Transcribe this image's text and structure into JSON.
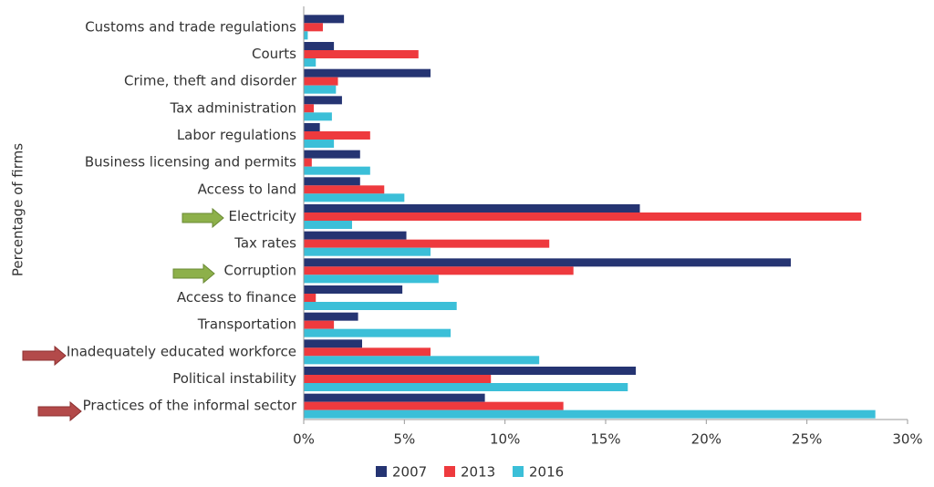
{
  "chart_data": {
    "type": "bar",
    "orientation": "horizontal",
    "y_axis_label": "Percentage of firms",
    "categories": [
      "Customs and trade regulations",
      "Courts",
      "Crime, theft and disorder",
      "Tax administration",
      "Labor regulations",
      "Business licensing and permits",
      "Access to land",
      "Electricity",
      "Tax rates",
      "Corruption",
      "Access to finance",
      "Transportation",
      "Inadequately educated workforce",
      "Political instability",
      "Practices of the informal sector"
    ],
    "series": [
      {
        "name": "2007",
        "color": "#253472",
        "values": [
          2.0,
          1.5,
          6.3,
          1.9,
          0.8,
          2.8,
          2.8,
          16.7,
          5.1,
          24.2,
          4.9,
          2.7,
          2.9,
          16.5,
          9.0
        ]
      },
      {
        "name": "2013",
        "color": "#ee3a3e",
        "values": [
          0.95,
          5.7,
          1.7,
          0.5,
          3.3,
          0.4,
          4.0,
          27.7,
          12.2,
          13.4,
          0.6,
          1.5,
          6.3,
          9.3,
          12.9
        ]
      },
      {
        "name": "2016",
        "color": "#3bbfd8",
        "values": [
          0.2,
          0.6,
          1.6,
          1.4,
          1.5,
          3.3,
          5.0,
          2.4,
          6.3,
          6.7,
          7.6,
          7.3,
          11.7,
          16.1,
          28.4
        ]
      }
    ],
    "xlim": [
      0,
      30
    ],
    "xticks": [
      {
        "value": 0,
        "label": "0%"
      },
      {
        "value": 5,
        "label": "5%"
      },
      {
        "value": 10,
        "label": "10%"
      },
      {
        "value": 15,
        "label": "15%"
      },
      {
        "value": 20,
        "label": "20%"
      },
      {
        "value": 25,
        "label": "25%"
      },
      {
        "value": 30,
        "label": "30%"
      }
    ]
  }
}
